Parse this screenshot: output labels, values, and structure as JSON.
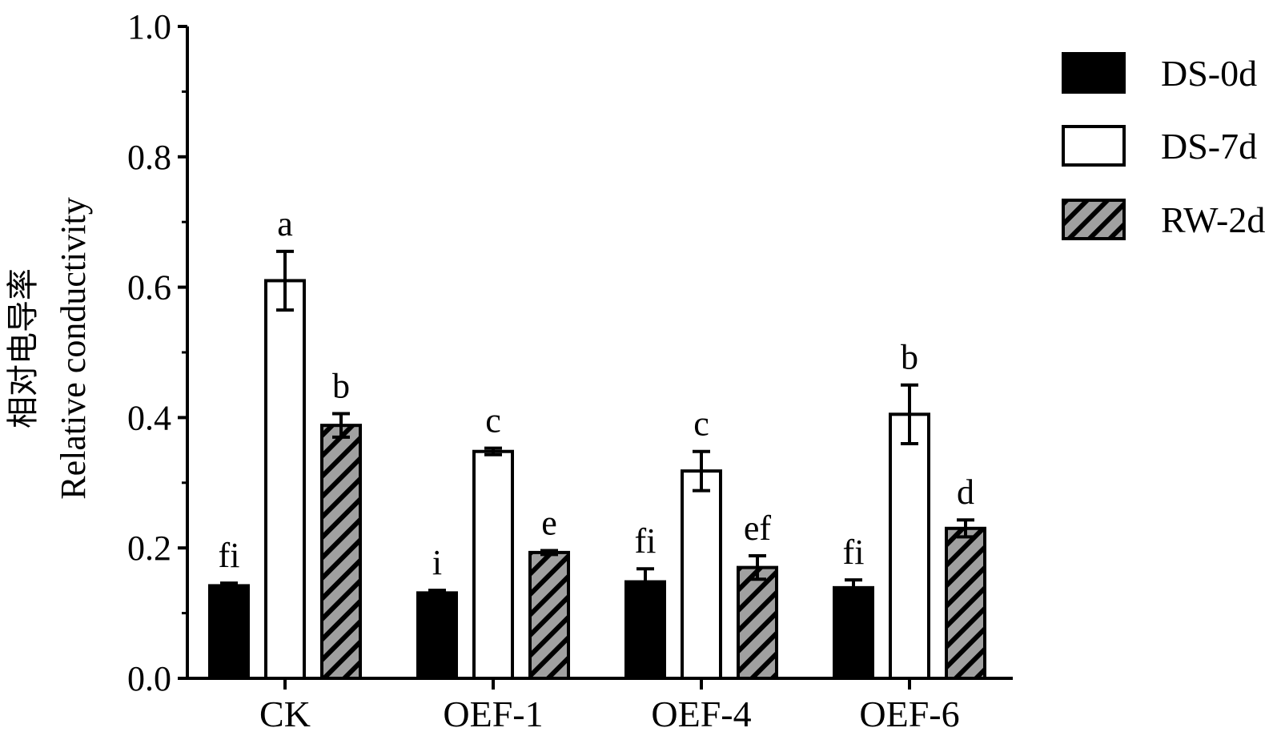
{
  "chart_data": {
    "type": "bar",
    "ylabel_cn": "相对电导率",
    "ylabel": "Relative conductivity",
    "xlabel": "",
    "ylim": [
      0,
      1.0
    ],
    "yticks": [
      "0.0",
      "0.2",
      "0.4",
      "0.6",
      "0.8",
      "1.0"
    ],
    "categories": [
      "CK",
      "OEF-1",
      "OEF-4",
      "OEF-6"
    ],
    "series": [
      {
        "name": "DS-0d",
        "pattern": "solid-black",
        "values": [
          0.142,
          0.131,
          0.148,
          0.139
        ],
        "errors": [
          0.004,
          0.004,
          0.02,
          0.012
        ],
        "labels": [
          "fi",
          "i",
          "fi",
          "fi"
        ]
      },
      {
        "name": "DS-7d",
        "pattern": "white",
        "values": [
          0.61,
          0.348,
          0.318,
          0.405
        ],
        "errors": [
          0.045,
          0.005,
          0.03,
          0.045
        ],
        "labels": [
          "a",
          "c",
          "c",
          "b"
        ]
      },
      {
        "name": "RW-2d",
        "pattern": "gray-hatched",
        "values": [
          0.388,
          0.193,
          0.17,
          0.23
        ],
        "errors": [
          0.018,
          0.003,
          0.018,
          0.013
        ],
        "labels": [
          "b",
          "e",
          "ef",
          "d"
        ]
      }
    ],
    "grid": false,
    "legend_position": "top-right",
    "colors": {
      "bar_edge": "#000000",
      "hatch_fill": "#a0a0a0",
      "solid": "#000000",
      "open": "#ffffff"
    }
  }
}
